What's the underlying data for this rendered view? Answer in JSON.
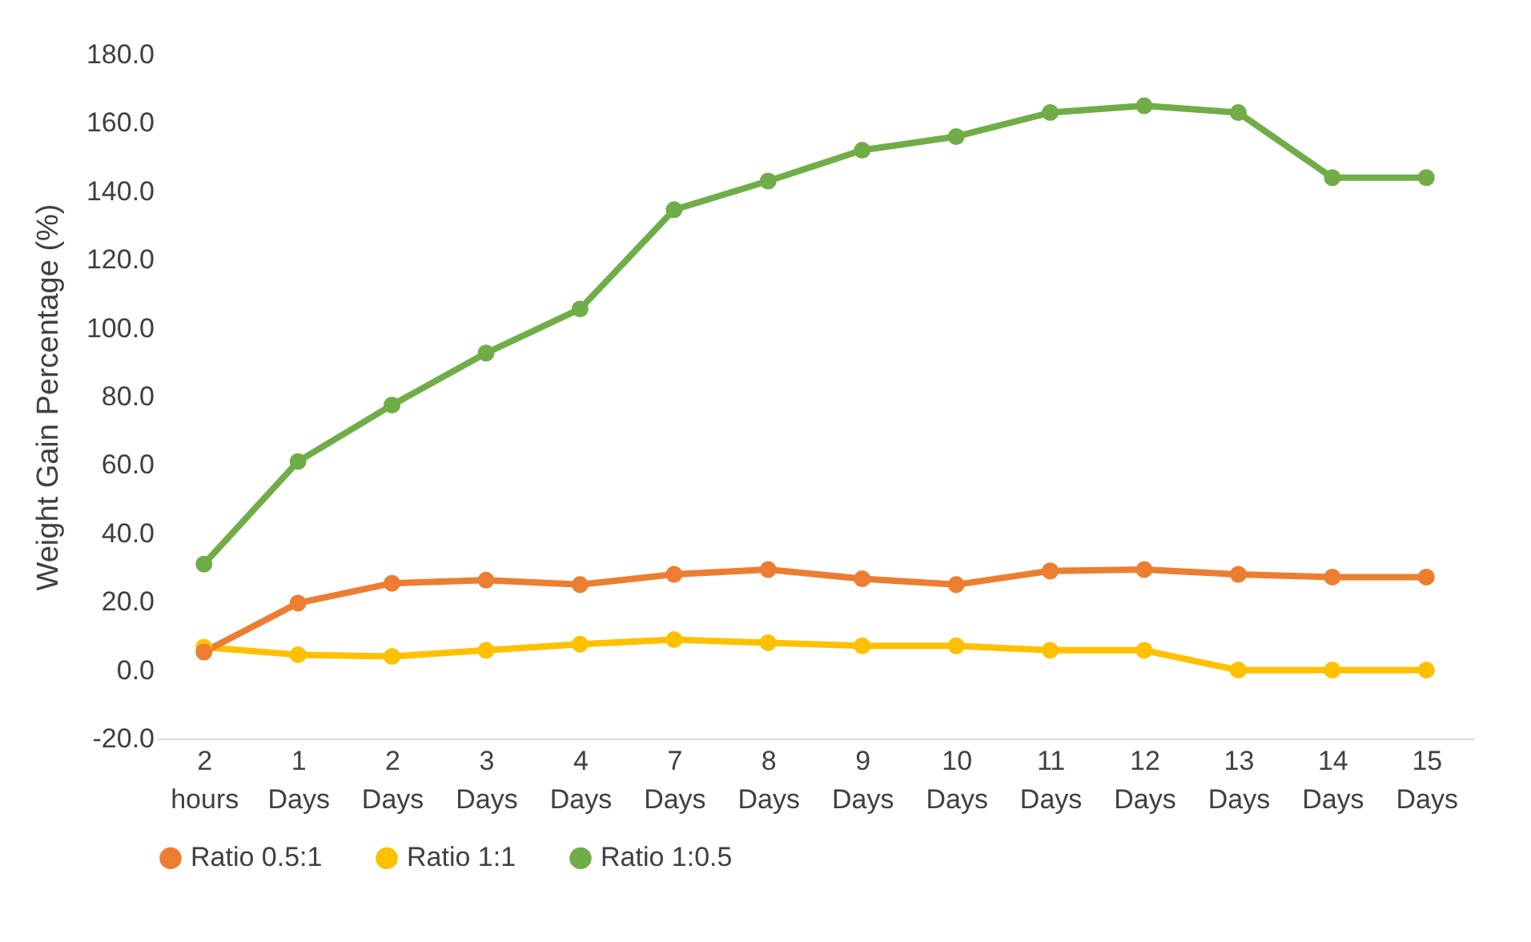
{
  "chart_data": {
    "type": "line",
    "ylabel": "Weight Gain Percentage (%)",
    "categories": [
      "2 hours",
      "1 Days",
      "2 Days",
      "3 Days",
      "4 Days",
      "7 Days",
      "8 Days",
      "9 Days",
      "10 Days",
      "11 Days",
      "12 Days",
      "13 Days",
      "14 Days",
      "15 Days"
    ],
    "series": [
      {
        "name": "Ratio 0.5:1",
        "color": "#ed7d31",
        "values": [
          5.3,
          19.6,
          25.4,
          26.3,
          25.0,
          28.0,
          29.4,
          26.7,
          25.0,
          29.0,
          29.4,
          28.0,
          27.2,
          27.2
        ]
      },
      {
        "name": "Ratio 1:1",
        "color": "#ffc000",
        "values": [
          6.7,
          4.5,
          4.0,
          5.8,
          7.6,
          8.9,
          8.0,
          7.1,
          7.1,
          5.8,
          5.8,
          0.0,
          0.0,
          0.0
        ]
      },
      {
        "name": "Ratio 1:0.5",
        "color": "#70ad47",
        "values": [
          31,
          61,
          77.5,
          92.7,
          105.6,
          134.6,
          143,
          152,
          156,
          163,
          165,
          163,
          144,
          144
        ]
      }
    ],
    "ylim": [
      -20,
      180
    ],
    "yticks": [
      {
        "value": -20,
        "label": "-20.0"
      },
      {
        "value": 0,
        "label": "0.0"
      },
      {
        "value": 20,
        "label": "20.0"
      },
      {
        "value": 40,
        "label": "40.0"
      },
      {
        "value": 60,
        "label": "60.0"
      },
      {
        "value": 80,
        "label": "80.0"
      },
      {
        "value": 100,
        "label": "100.0"
      },
      {
        "value": 120,
        "label": "120.0"
      },
      {
        "value": 140,
        "label": "140.0"
      },
      {
        "value": 160,
        "label": "160.0"
      },
      {
        "value": 180,
        "label": "180.0"
      }
    ],
    "grid": false,
    "legend": "bottom",
    "marker": "circle",
    "line_style": "solid"
  }
}
